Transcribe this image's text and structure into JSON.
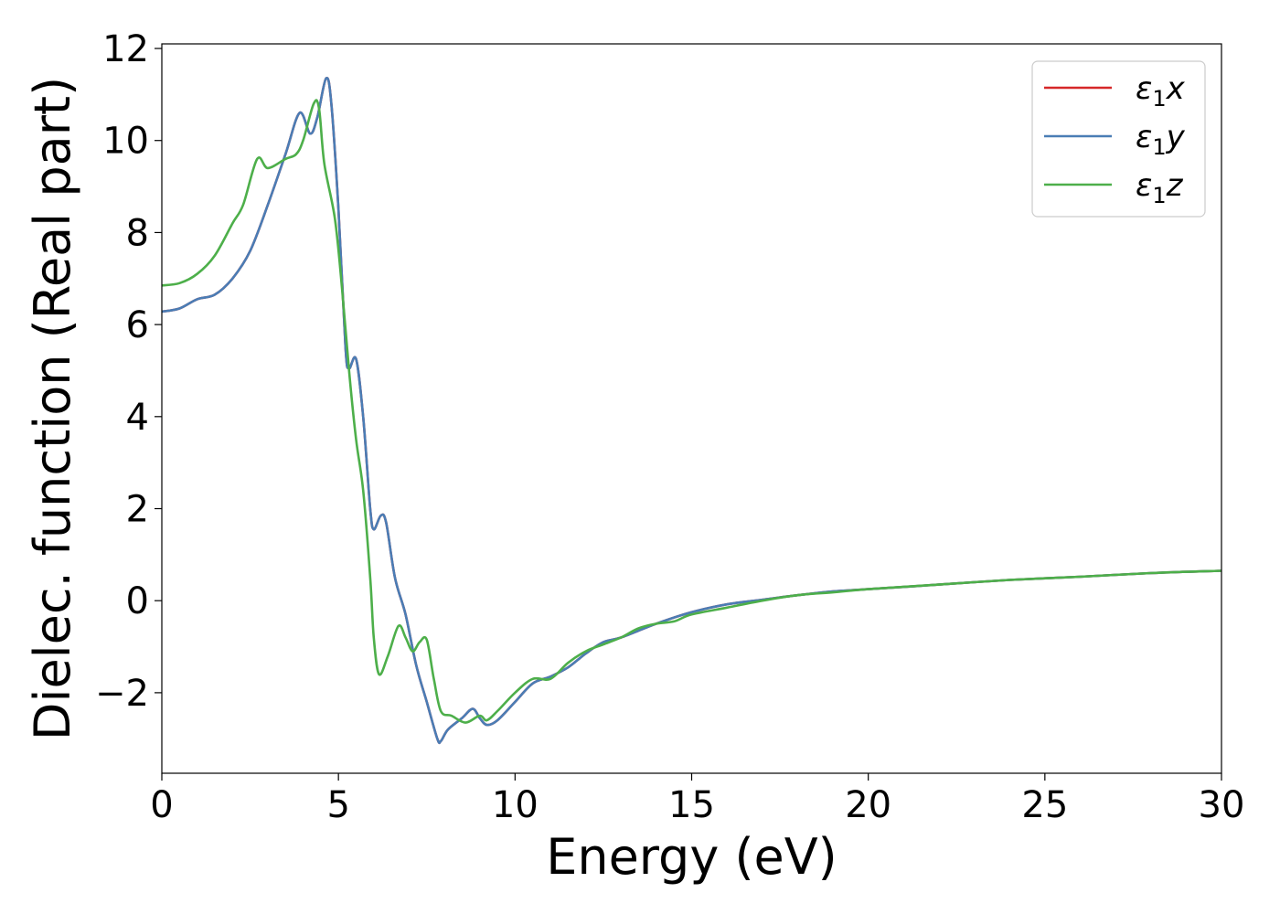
{
  "chart_data": {
    "type": "line",
    "xlabel": "Energy (eV)",
    "ylabel": "Dielec. function (Real part)",
    "xlim": [
      0,
      30
    ],
    "ylim": [
      -3.75,
      12.1
    ],
    "xticks": [
      0,
      5,
      10,
      15,
      20,
      25,
      30
    ],
    "xtick_labels": [
      "0",
      "5",
      "10",
      "15",
      "20",
      "25",
      "30"
    ],
    "yticks": [
      -2,
      0,
      2,
      4,
      6,
      8,
      10,
      12
    ],
    "ytick_labels": [
      "−2",
      "0",
      "2",
      "4",
      "6",
      "8",
      "10",
      "12"
    ],
    "grid": false,
    "legend_position": "top-right",
    "series": [
      {
        "name": "ε1x",
        "color": "#d62728",
        "points": [
          [
            0,
            6.28
          ],
          [
            0.5,
            6.35
          ],
          [
            1.0,
            6.55
          ],
          [
            1.5,
            6.65
          ],
          [
            2.0,
            7.0
          ],
          [
            2.5,
            7.6
          ],
          [
            3.0,
            8.6
          ],
          [
            3.5,
            9.7
          ],
          [
            3.9,
            10.6
          ],
          [
            4.2,
            10.15
          ],
          [
            4.4,
            10.5
          ],
          [
            4.65,
            11.35
          ],
          [
            4.8,
            10.8
          ],
          [
            5.0,
            8.5
          ],
          [
            5.2,
            5.5
          ],
          [
            5.3,
            5.05
          ],
          [
            5.5,
            5.25
          ],
          [
            5.7,
            4.0
          ],
          [
            5.9,
            2.0
          ],
          [
            6.0,
            1.55
          ],
          [
            6.2,
            1.85
          ],
          [
            6.35,
            1.7
          ],
          [
            6.6,
            0.5
          ],
          [
            6.9,
            -0.3
          ],
          [
            7.2,
            -1.4
          ],
          [
            7.5,
            -2.2
          ],
          [
            7.8,
            -3.0
          ],
          [
            7.9,
            -3.05
          ],
          [
            8.1,
            -2.8
          ],
          [
            8.5,
            -2.55
          ],
          [
            8.8,
            -2.35
          ],
          [
            9.0,
            -2.55
          ],
          [
            9.2,
            -2.7
          ],
          [
            9.5,
            -2.6
          ],
          [
            10.0,
            -2.2
          ],
          [
            10.5,
            -1.8
          ],
          [
            11.0,
            -1.65
          ],
          [
            11.5,
            -1.45
          ],
          [
            12.0,
            -1.15
          ],
          [
            12.5,
            -0.9
          ],
          [
            13.0,
            -0.8
          ],
          [
            14.0,
            -0.5
          ],
          [
            15.0,
            -0.25
          ],
          [
            16.0,
            -0.08
          ],
          [
            17.0,
            0.02
          ],
          [
            18.0,
            0.12
          ],
          [
            19.0,
            0.2
          ],
          [
            20.0,
            0.25
          ],
          [
            22.0,
            0.35
          ],
          [
            24.0,
            0.45
          ],
          [
            26.0,
            0.52
          ],
          [
            28.0,
            0.6
          ],
          [
            30.0,
            0.65
          ]
        ]
      },
      {
        "name": "ε1y",
        "color": "#4a7db5",
        "points": [
          [
            0,
            6.28
          ],
          [
            0.5,
            6.35
          ],
          [
            1.0,
            6.55
          ],
          [
            1.5,
            6.65
          ],
          [
            2.0,
            7.0
          ],
          [
            2.5,
            7.6
          ],
          [
            3.0,
            8.6
          ],
          [
            3.5,
            9.7
          ],
          [
            3.9,
            10.6
          ],
          [
            4.2,
            10.15
          ],
          [
            4.4,
            10.5
          ],
          [
            4.65,
            11.35
          ],
          [
            4.8,
            10.8
          ],
          [
            5.0,
            8.5
          ],
          [
            5.2,
            5.5
          ],
          [
            5.3,
            5.05
          ],
          [
            5.5,
            5.25
          ],
          [
            5.7,
            4.0
          ],
          [
            5.9,
            2.0
          ],
          [
            6.0,
            1.55
          ],
          [
            6.2,
            1.85
          ],
          [
            6.35,
            1.7
          ],
          [
            6.6,
            0.5
          ],
          [
            6.9,
            -0.3
          ],
          [
            7.2,
            -1.4
          ],
          [
            7.5,
            -2.2
          ],
          [
            7.8,
            -3.0
          ],
          [
            7.9,
            -3.05
          ],
          [
            8.1,
            -2.8
          ],
          [
            8.5,
            -2.55
          ],
          [
            8.8,
            -2.35
          ],
          [
            9.0,
            -2.55
          ],
          [
            9.2,
            -2.7
          ],
          [
            9.5,
            -2.6
          ],
          [
            10.0,
            -2.2
          ],
          [
            10.5,
            -1.8
          ],
          [
            11.0,
            -1.65
          ],
          [
            11.5,
            -1.45
          ],
          [
            12.0,
            -1.15
          ],
          [
            12.5,
            -0.9
          ],
          [
            13.0,
            -0.8
          ],
          [
            14.0,
            -0.5
          ],
          [
            15.0,
            -0.25
          ],
          [
            16.0,
            -0.08
          ],
          [
            17.0,
            0.02
          ],
          [
            18.0,
            0.12
          ],
          [
            19.0,
            0.2
          ],
          [
            20.0,
            0.25
          ],
          [
            22.0,
            0.35
          ],
          [
            24.0,
            0.45
          ],
          [
            26.0,
            0.52
          ],
          [
            28.0,
            0.6
          ],
          [
            30.0,
            0.65
          ]
        ]
      },
      {
        "name": "ε1z",
        "color": "#4daf4a",
        "points": [
          [
            0,
            6.85
          ],
          [
            0.5,
            6.9
          ],
          [
            1.0,
            7.1
          ],
          [
            1.5,
            7.5
          ],
          [
            2.0,
            8.2
          ],
          [
            2.3,
            8.6
          ],
          [
            2.7,
            9.6
          ],
          [
            3.0,
            9.4
          ],
          [
            3.5,
            9.6
          ],
          [
            3.8,
            9.7
          ],
          [
            4.0,
            10.0
          ],
          [
            4.3,
            10.8
          ],
          [
            4.45,
            10.7
          ],
          [
            4.6,
            9.5
          ],
          [
            4.9,
            8.3
          ],
          [
            5.1,
            6.8
          ],
          [
            5.3,
            5.0
          ],
          [
            5.5,
            3.5
          ],
          [
            5.7,
            2.4
          ],
          [
            5.9,
            0.5
          ],
          [
            6.0,
            -0.8
          ],
          [
            6.15,
            -1.6
          ],
          [
            6.4,
            -1.2
          ],
          [
            6.7,
            -0.55
          ],
          [
            6.9,
            -0.8
          ],
          [
            7.1,
            -1.1
          ],
          [
            7.3,
            -0.9
          ],
          [
            7.5,
            -0.85
          ],
          [
            7.7,
            -1.7
          ],
          [
            7.9,
            -2.4
          ],
          [
            8.2,
            -2.5
          ],
          [
            8.6,
            -2.65
          ],
          [
            9.0,
            -2.5
          ],
          [
            9.2,
            -2.6
          ],
          [
            9.5,
            -2.4
          ],
          [
            10.0,
            -2.0
          ],
          [
            10.5,
            -1.7
          ],
          [
            11.0,
            -1.7
          ],
          [
            11.5,
            -1.35
          ],
          [
            12.0,
            -1.1
          ],
          [
            12.5,
            -0.95
          ],
          [
            13.0,
            -0.8
          ],
          [
            13.5,
            -0.6
          ],
          [
            14.0,
            -0.5
          ],
          [
            14.5,
            -0.45
          ],
          [
            15.0,
            -0.3
          ],
          [
            16.0,
            -0.15
          ],
          [
            17.0,
            0.0
          ],
          [
            18.0,
            0.12
          ],
          [
            19.0,
            0.18
          ],
          [
            20.0,
            0.25
          ],
          [
            22.0,
            0.35
          ],
          [
            24.0,
            0.45
          ],
          [
            26.0,
            0.52
          ],
          [
            28.0,
            0.6
          ],
          [
            30.0,
            0.65
          ]
        ]
      }
    ]
  }
}
